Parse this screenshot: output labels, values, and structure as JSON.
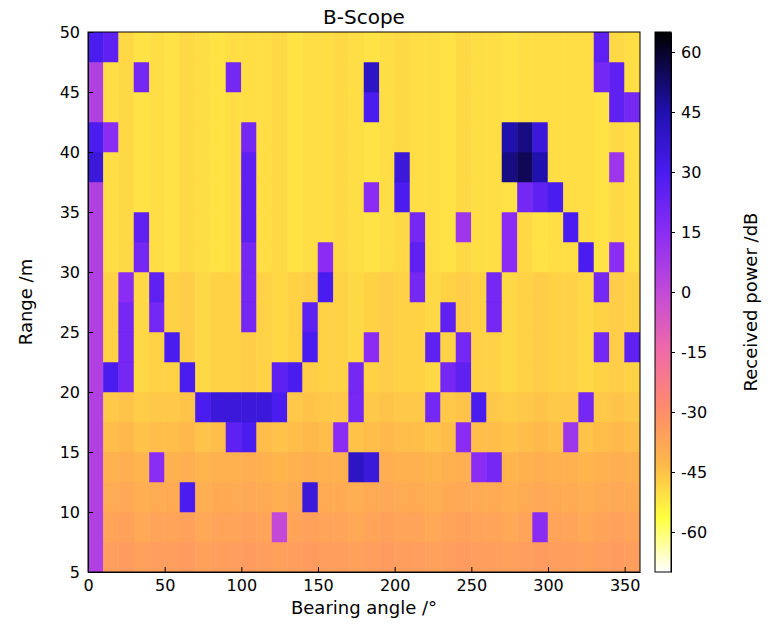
{
  "chart_data": {
    "type": "heatmap",
    "title": "B-Scope",
    "x_label": "Bearing angle /°",
    "y_label": "Range /m",
    "xlim": [
      0,
      360
    ],
    "ylim": [
      5,
      50
    ],
    "xticks": [
      0,
      50,
      100,
      150,
      200,
      250,
      300,
      350
    ],
    "yticks": [
      5,
      10,
      15,
      20,
      25,
      30,
      35,
      40,
      45,
      50
    ],
    "x_bins": [
      0,
      10,
      20,
      30,
      40,
      50,
      60,
      70,
      80,
      90,
      100,
      110,
      120,
      130,
      140,
      150,
      160,
      170,
      180,
      190,
      200,
      210,
      220,
      230,
      240,
      250,
      260,
      270,
      280,
      290,
      300,
      310,
      320,
      330,
      340,
      350,
      360
    ],
    "y_bins": [
      5,
      7.5,
      10,
      12.5,
      15,
      17.5,
      20,
      22.5,
      25,
      27.5,
      30,
      32.5,
      35,
      37.5,
      40,
      42.5,
      45,
      47.5,
      50
    ],
    "cells": [
      [
        5,
        -35,
        -34,
        -36,
        -35,
        -35,
        -34,
        -36,
        -35,
        -35,
        -34,
        -35,
        -36,
        -35,
        -34,
        -35,
        -35,
        -36,
        -35,
        -34,
        -35,
        -35,
        -36,
        -35,
        -34,
        -35,
        -35,
        -36,
        -35,
        -34,
        -35,
        -35,
        -36,
        -35,
        -34,
        -35
      ],
      [
        5,
        -37,
        -36,
        -38,
        -37,
        -37,
        -36,
        -38,
        -37,
        -37,
        -36,
        -37,
        0,
        -37,
        -36,
        -37,
        -37,
        -38,
        -37,
        -36,
        -37,
        -37,
        -38,
        -37,
        -36,
        -37,
        -37,
        -38,
        -37,
        15,
        -37,
        -37,
        -38,
        -37,
        -36,
        -37
      ],
      [
        5,
        -39,
        -38,
        -40,
        -39,
        -39,
        30,
        -40,
        -39,
        -39,
        -38,
        -39,
        -40,
        -39,
        35,
        -39,
        -39,
        -40,
        -39,
        -38,
        -39,
        -39,
        -40,
        -39,
        -38,
        -39,
        -39,
        -40,
        -39,
        -38,
        -39,
        -39,
        -40,
        -39,
        -38,
        -39
      ],
      [
        5,
        -41,
        -40,
        -42,
        15,
        -41,
        -40,
        -42,
        -41,
        -41,
        -40,
        -41,
        -42,
        -41,
        -40,
        -41,
        -41,
        40,
        35,
        -40,
        -41,
        -41,
        -42,
        -41,
        -40,
        15,
        20,
        -42,
        -41,
        -40,
        -41,
        -41,
        -42,
        -41,
        -40,
        -41
      ],
      [
        5,
        -44,
        -43,
        -45,
        -44,
        -44,
        -43,
        -45,
        -44,
        25,
        30,
        -44,
        -45,
        -44,
        -43,
        -44,
        15,
        -45,
        -44,
        -43,
        -44,
        -44,
        -45,
        -44,
        15,
        -44,
        -44,
        -45,
        -44,
        -43,
        -44,
        10,
        -45,
        -44,
        -43,
        -44
      ],
      [
        5,
        -46,
        -45,
        -47,
        -46,
        -46,
        -45,
        30,
        35,
        35,
        35,
        35,
        30,
        -46,
        -45,
        -46,
        -46,
        20,
        -46,
        -45,
        -46,
        -46,
        20,
        -46,
        -45,
        30,
        -46,
        -47,
        -46,
        -45,
        -46,
        -46,
        20,
        -46,
        -45,
        -46
      ],
      [
        5,
        30,
        20,
        -49,
        -48,
        -48,
        30,
        -49,
        -48,
        -48,
        -47,
        -48,
        25,
        30,
        -47,
        -48,
        -48,
        20,
        -48,
        -47,
        -48,
        -48,
        -49,
        20,
        25,
        -48,
        -48,
        -49,
        -48,
        -47,
        -48,
        -48,
        -49,
        -48,
        -47,
        -48
      ],
      [
        5,
        -48,
        20,
        -49,
        -48,
        30,
        -47,
        -49,
        -48,
        -48,
        -47,
        -48,
        -49,
        -48,
        30,
        -48,
        -48,
        -49,
        15,
        -47,
        -48,
        -48,
        25,
        -48,
        20,
        -48,
        -48,
        -49,
        -48,
        -47,
        -48,
        -48,
        -49,
        20,
        -47,
        25
      ],
      [
        5,
        -48,
        20,
        -49,
        20,
        -48,
        -47,
        -49,
        -48,
        -48,
        20,
        -48,
        -49,
        -48,
        25,
        -48,
        -48,
        -49,
        -48,
        -47,
        -48,
        -48,
        -49,
        25,
        -47,
        -48,
        20,
        -49,
        -48,
        -47,
        -48,
        -48,
        -49,
        -48,
        -47,
        -48
      ],
      [
        5,
        -48,
        15,
        -49,
        25,
        -48,
        -47,
        -49,
        -48,
        -48,
        20,
        -48,
        -49,
        -48,
        -47,
        30,
        -48,
        -49,
        -48,
        -47,
        -48,
        20,
        -49,
        -48,
        -47,
        -48,
        20,
        -49,
        -48,
        -47,
        -48,
        -48,
        -49,
        20,
        -47,
        -48
      ],
      [
        5,
        -50,
        -49,
        20,
        -50,
        -51,
        -49,
        -50,
        -51,
        -50,
        20,
        -50,
        -49,
        -51,
        -50,
        15,
        -49,
        -50,
        -51,
        -50,
        -49,
        25,
        -50,
        -51,
        -49,
        -50,
        -50,
        15,
        -49,
        -51,
        -50,
        -50,
        30,
        -51,
        15,
        -50
      ],
      [
        5,
        -50,
        -49,
        25,
        -50,
        -51,
        -49,
        -50,
        -51,
        -50,
        25,
        -50,
        -49,
        -51,
        -50,
        -50,
        -49,
        -50,
        -51,
        -50,
        -49,
        20,
        -50,
        -51,
        10,
        -50,
        -50,
        15,
        -49,
        -51,
        -50,
        30,
        -50,
        -51,
        -49,
        -50
      ],
      [
        5,
        -50,
        -49,
        -51,
        -50,
        -51,
        -49,
        -50,
        -51,
        -50,
        25,
        -50,
        -49,
        -51,
        -50,
        -50,
        -49,
        -50,
        15,
        -50,
        30,
        -50,
        -50,
        -51,
        -49,
        -50,
        -50,
        -51,
        20,
        25,
        30,
        -50,
        -50,
        -51,
        -49,
        -50
      ],
      [
        35,
        -50,
        -49,
        -51,
        -50,
        -51,
        -49,
        -50,
        -51,
        -50,
        25,
        -50,
        -49,
        -51,
        -50,
        -50,
        -49,
        -50,
        -51,
        -50,
        35,
        -50,
        -50,
        -51,
        -49,
        -50,
        -50,
        50,
        55,
        45,
        -50,
        -50,
        -50,
        -51,
        10,
        -50
      ],
      [
        30,
        15,
        -49,
        -51,
        -50,
        -51,
        -49,
        -50,
        -51,
        -50,
        20,
        -50,
        -49,
        -51,
        -50,
        -50,
        -49,
        -50,
        -51,
        -50,
        -49,
        -50,
        -50,
        -51,
        -49,
        -50,
        -50,
        45,
        50,
        35,
        -50,
        -50,
        -50,
        -51,
        -49,
        -50
      ],
      [
        5,
        -50,
        -49,
        -51,
        -50,
        -51,
        -49,
        -50,
        -51,
        -50,
        -50,
        -50,
        -49,
        -51,
        -50,
        -50,
        -49,
        -50,
        30,
        -50,
        -49,
        -50,
        -50,
        -51,
        -49,
        -50,
        -50,
        -51,
        -50,
        -50,
        -50,
        -50,
        -50,
        -51,
        25,
        20
      ],
      [
        5,
        -50,
        -49,
        20,
        -50,
        -51,
        -49,
        -50,
        -51,
        20,
        -50,
        -50,
        -49,
        -51,
        -50,
        -50,
        -49,
        -50,
        40,
        -50,
        -49,
        -50,
        -50,
        -51,
        -49,
        -50,
        -50,
        -51,
        -50,
        -50,
        -50,
        -50,
        -50,
        20,
        25,
        -50
      ],
      [
        30,
        25,
        -49,
        -51,
        -50,
        -51,
        -49,
        -50,
        -51,
        -50,
        -50,
        -50,
        -49,
        -51,
        -50,
        -50,
        -49,
        -50,
        -51,
        -50,
        -49,
        -50,
        -50,
        -51,
        -49,
        -50,
        -50,
        -51,
        -50,
        -50,
        -50,
        -50,
        -50,
        25,
        -49,
        -50
      ]
    ],
    "colorbar": {
      "label": "Received power /dB",
      "range": [
        -70,
        65
      ],
      "ticks": [
        -60,
        -45,
        -30,
        -15,
        0,
        15,
        30,
        45,
        60
      ]
    }
  }
}
